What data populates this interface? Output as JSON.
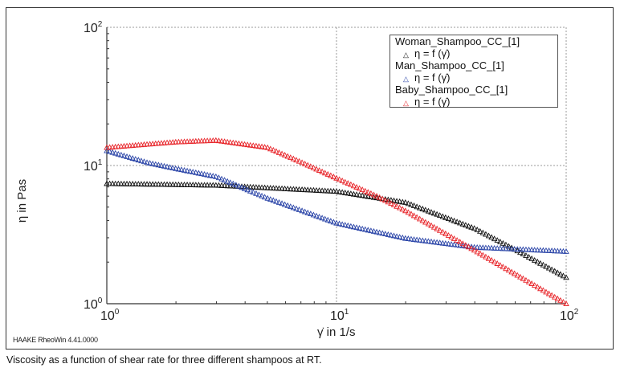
{
  "caption": "Viscosity as a function of shear rate for three different shampoos at RT.",
  "software_label": "HAAKE RheoWin 4.41.0000",
  "chart_data": {
    "type": "scatter",
    "xlabel": "γ̇ in 1/s",
    "ylabel": "η in Pas",
    "xscale": "log",
    "yscale": "log",
    "xlim": [
      1,
      100
    ],
    "ylim": [
      1,
      100
    ],
    "xticks": [
      {
        "base": "10",
        "exp": "0",
        "value": 1
      },
      {
        "base": "10",
        "exp": "1",
        "value": 10
      },
      {
        "base": "10",
        "exp": "2",
        "value": 100
      }
    ],
    "yticks": [
      {
        "base": "10",
        "exp": "0",
        "value": 1
      },
      {
        "base": "10",
        "exp": "1",
        "value": 10
      },
      {
        "base": "10",
        "exp": "2",
        "value": 100
      }
    ],
    "grid": "dashed at decades",
    "legend_position": "top-right",
    "marker": "triangle",
    "series": [
      {
        "name": "Woman_Shampoo_CC_[1]",
        "legend_sub": "η = f (γ̇)",
        "color": "#111111",
        "x": [
          1,
          3,
          10,
          20,
          40,
          60,
          100
        ],
        "y": [
          7.4,
          7.2,
          6.5,
          5.4,
          3.5,
          2.46,
          1.55
        ]
      },
      {
        "name": "Man_Shampoo_CC_[1]",
        "legend_sub": "η = f (γ̇)",
        "color": "#2b45a8",
        "x": [
          1,
          1.5,
          2,
          3,
          5,
          10,
          20,
          40,
          100
        ],
        "y": [
          12.8,
          10.5,
          9.5,
          8.3,
          5.8,
          3.83,
          2.97,
          2.56,
          2.39
        ]
      },
      {
        "name": "Baby_Shampoo_CC_[1]",
        "legend_sub": "η = f (γ̇)",
        "color": "#e8262b",
        "x": [
          1,
          2,
          3,
          5,
          7,
          10,
          15,
          20,
          40,
          100
        ],
        "y": [
          13.5,
          14.8,
          15.2,
          13.5,
          10.6,
          8.1,
          6.0,
          4.7,
          2.43,
          1.0
        ]
      }
    ]
  }
}
